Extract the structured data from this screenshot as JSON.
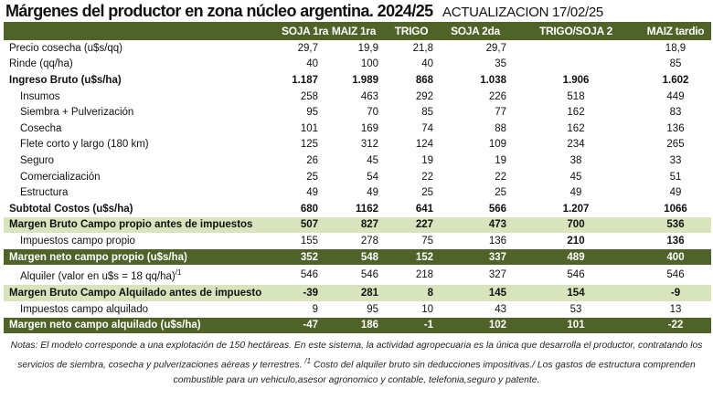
{
  "title": "Márgenes  del productor en zona núcleo argentina. 2024/25",
  "update": "ACTUALIZACION 17/02/25",
  "colors": {
    "header_bg": "#4f6228",
    "highlight_bg": "#d8e4bc"
  },
  "columns": [
    "",
    "SOJA 1ra",
    "MAIZ 1ra",
    "TRIGO",
    "SOJA 2da",
    "TRIGO/SOJA 2",
    "MAIZ tardio"
  ],
  "rows": [
    {
      "label": "Precio cosecha (u$s/qq)",
      "values": [
        "29,7",
        "19,9",
        "21,8",
        "29,7",
        "",
        "18,9"
      ]
    },
    {
      "label": "Rinde (qq/ha)",
      "values": [
        "40",
        "100",
        "40",
        "35",
        "",
        "85"
      ]
    },
    {
      "label": "Ingreso Bruto (u$s/ha)",
      "values": [
        "1.187",
        "1.989",
        "868",
        "1.038",
        "1.906",
        "1.602"
      ]
    },
    {
      "label": "Insumos",
      "values": [
        "258",
        "463",
        "292",
        "226",
        "518",
        "449"
      ]
    },
    {
      "label": "Siembra + Pulverización",
      "values": [
        "95",
        "70",
        "85",
        "77",
        "162",
        "83"
      ]
    },
    {
      "label": "Cosecha",
      "values": [
        "101",
        "169",
        "74",
        "88",
        "162",
        "136"
      ]
    },
    {
      "label": "Flete corto y largo (180 km)",
      "values": [
        "125",
        "312",
        "124",
        "109",
        "234",
        "265"
      ]
    },
    {
      "label": "Seguro",
      "values": [
        "26",
        "45",
        "19",
        "19",
        "38",
        "33"
      ]
    },
    {
      "label": "Comercialización",
      "values": [
        "25",
        "54",
        "22",
        "22",
        "45",
        "51"
      ]
    },
    {
      "label": "Estructura",
      "values": [
        "49",
        "49",
        "25",
        "25",
        "49",
        "49"
      ]
    },
    {
      "label": "Subtotal Costos (u$s/ha)",
      "values": [
        "680",
        "1162",
        "641",
        "566",
        "1.207",
        "1066"
      ]
    },
    {
      "label": "Margen Bruto Campo propio antes de impuestos",
      "values": [
        "507",
        "827",
        "227",
        "473",
        "700",
        "536"
      ]
    },
    {
      "label": "Impuestos  campo propio",
      "values": [
        "155",
        "278",
        "75",
        "136",
        "210",
        "136"
      ]
    },
    {
      "label": "Margen neto campo propio (u$s/ha)",
      "values": [
        "352",
        "548",
        "152",
        "337",
        "489",
        "400"
      ]
    },
    {
      "label": "Alquiler (valor en u$s = 18 qq/ha)",
      "label_sup": "/1",
      "values": [
        "546",
        "546",
        "218",
        "327",
        "546",
        "546"
      ]
    },
    {
      "label": "Margen Bruto Campo Alquilado antes de impuesto",
      "values": [
        "-39",
        "281",
        "8",
        "145",
        "154",
        "-9"
      ]
    },
    {
      "label": "Impuestos campo alquilado",
      "values": [
        "9",
        "95",
        "10",
        "43",
        "53",
        "13"
      ]
    },
    {
      "label": "Margen neto campo alquilado (u$s/ha)",
      "values": [
        "-47",
        "186",
        "-1",
        "102",
        "101",
        "-22"
      ]
    }
  ],
  "notes": {
    "part1": "Notas: El modelo corresponde a una explotación de 150 hectáreas. En este sistema, la actividad agropecuaria es la única que desarrolla el productor, contratando los servicios de siembra, cosecha y pulverizaciones aéreas y terrestres. ",
    "sup": "/1",
    "part2": " Costo del alquiler bruto sin deducciones impositivas./ Los gastos de estructura comprenden combustible para un vehiculo,asesor agronomico y contable, telefonia,seguro y patente."
  }
}
